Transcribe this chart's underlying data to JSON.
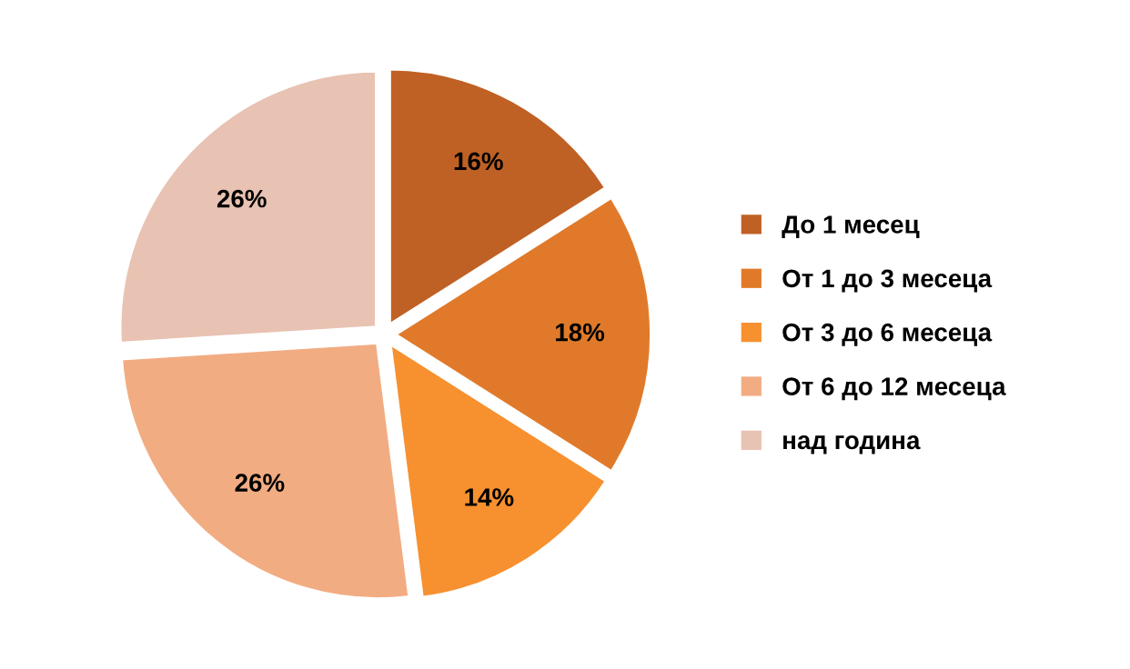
{
  "chart_data": {
    "type": "pie",
    "categories": [
      "До 1 месец",
      "От 1 до 3 месеца",
      "От 3 до 6 месеца",
      "От 6 до 12 месеца",
      "над година"
    ],
    "values": [
      16,
      18,
      14,
      26,
      26
    ],
    "colors": [
      "#bf6124",
      "#e07a2a",
      "#f7902f",
      "#f2ac82",
      "#e8c2b2"
    ],
    "value_labels": [
      "16%",
      "18%",
      "14%",
      "26%",
      "26%"
    ],
    "legend": "right"
  }
}
